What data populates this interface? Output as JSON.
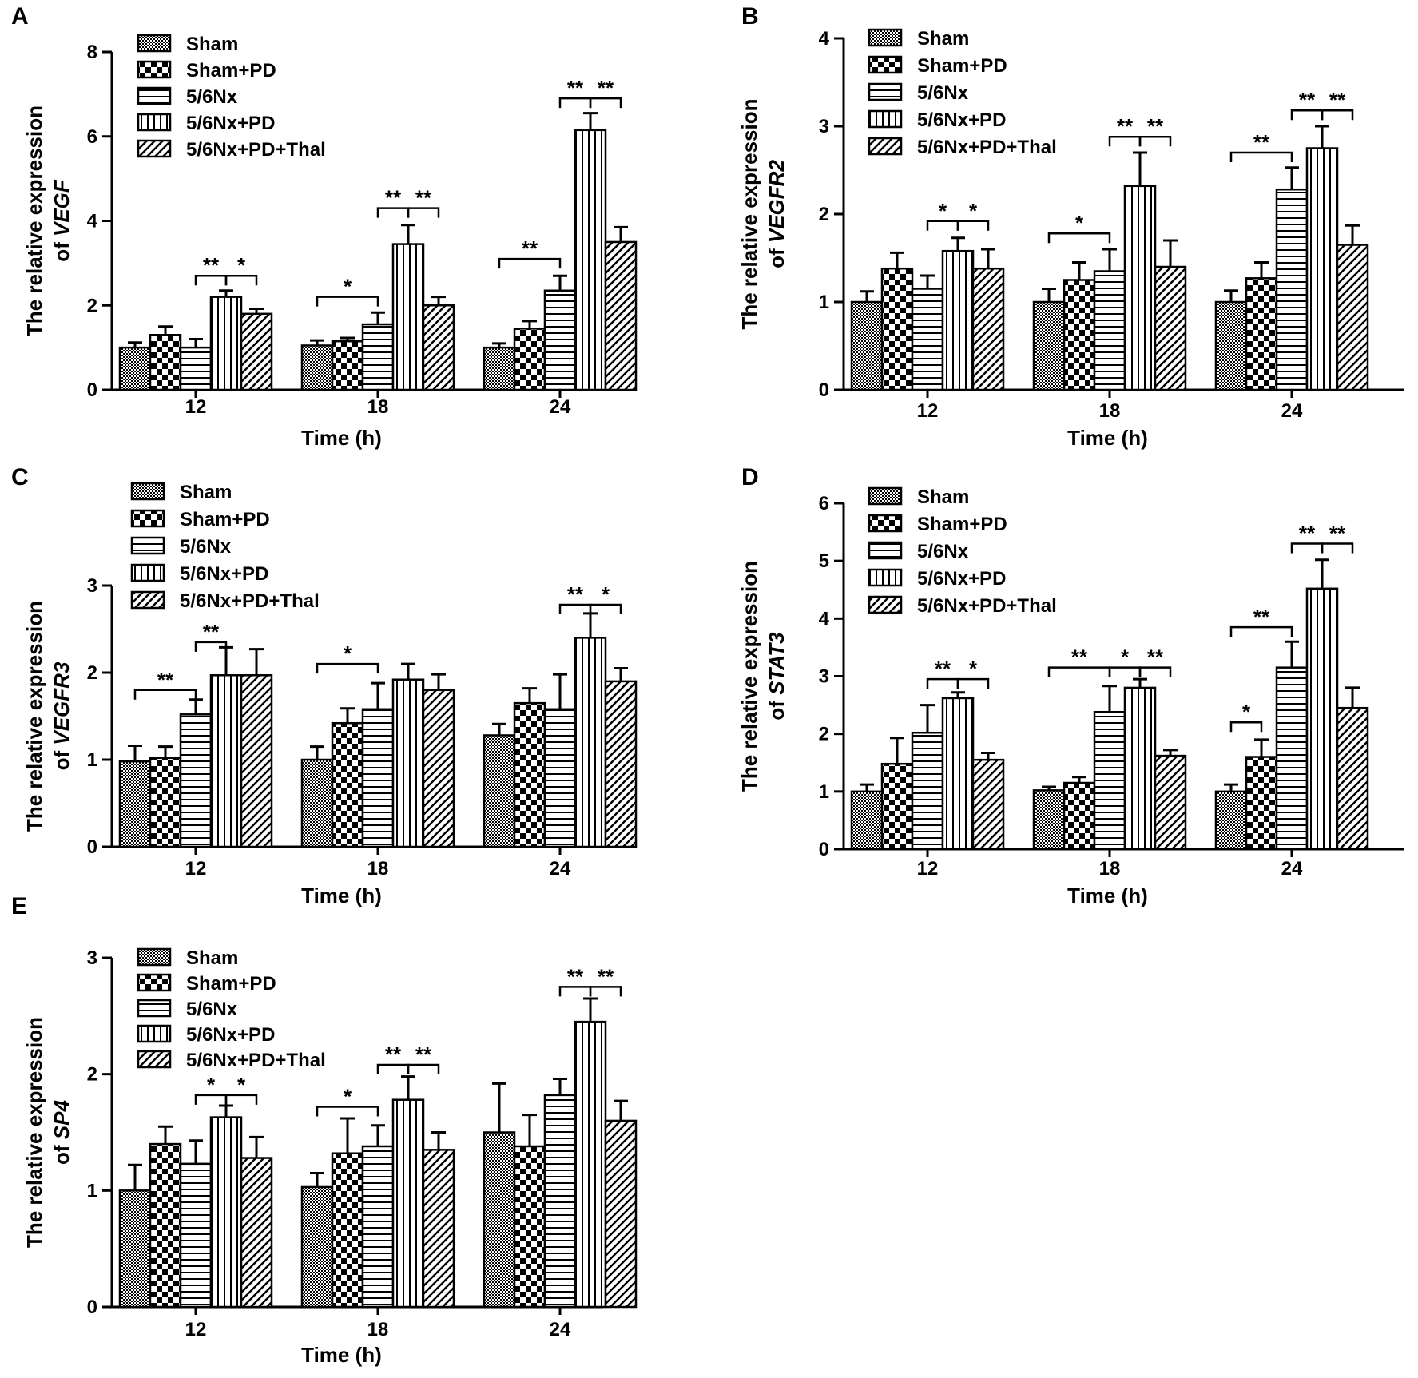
{
  "figure": {
    "series_patterns": [
      "pat-sham",
      "pat-shampd",
      "pat-nx",
      "pat-nxpd",
      "pat-thal"
    ]
  },
  "chart_data": [
    {
      "panel": "A",
      "type": "bar",
      "ylabel_line1": "The relative expression",
      "ylabel_prefix": "of ",
      "gene": "VEGF",
      "xlabel": "Time (h)",
      "categories": [
        "12",
        "18",
        "24"
      ],
      "ylim": [
        0,
        8
      ],
      "yticks": [
        0,
        2,
        4,
        6,
        8
      ],
      "legend": [
        "Sham",
        "Sham+PD",
        "5/6Nx",
        "5/6Nx+PD",
        "5/6Nx+PD+Thal"
      ],
      "series": [
        {
          "name": "Sham",
          "values": [
            1.0,
            1.05,
            1.0
          ],
          "errors": [
            0.12,
            0.12,
            0.1
          ]
        },
        {
          "name": "Sham+PD",
          "values": [
            1.3,
            1.15,
            1.45
          ],
          "errors": [
            0.2,
            0.08,
            0.18
          ]
        },
        {
          "name": "5/6Nx",
          "values": [
            1.0,
            1.55,
            2.35
          ],
          "errors": [
            0.2,
            0.28,
            0.35
          ]
        },
        {
          "name": "5/6Nx+PD",
          "values": [
            2.2,
            3.45,
            6.15
          ],
          "errors": [
            0.15,
            0.45,
            0.4
          ]
        },
        {
          "name": "5/6Nx+PD+Thal",
          "values": [
            1.8,
            2.0,
            3.5
          ],
          "errors": [
            0.12,
            0.2,
            0.35
          ]
        }
      ],
      "significance": [
        {
          "group": 0,
          "from": 2,
          "to": 3,
          "y": 2.7,
          "text": "**"
        },
        {
          "group": 0,
          "from": 3,
          "to": 4,
          "y": 2.7,
          "text": "*"
        },
        {
          "group": 1,
          "from": 0,
          "to": 2,
          "y": 2.2,
          "text": "*"
        },
        {
          "group": 1,
          "from": 3,
          "to": 2,
          "y": 4.3,
          "text": "**"
        },
        {
          "group": 1,
          "from": 3,
          "to": 4,
          "y": 4.3,
          "text": "**"
        },
        {
          "group": 2,
          "from": 0,
          "to": 2,
          "y": 3.1,
          "text": "**"
        },
        {
          "group": 2,
          "from": 3,
          "to": 2,
          "y": 6.9,
          "text": "**"
        },
        {
          "group": 2,
          "from": 3,
          "to": 4,
          "y": 6.9,
          "text": "**"
        }
      ]
    },
    {
      "panel": "B",
      "type": "bar",
      "ylabel_line1": "The relative expression",
      "ylabel_prefix": "of ",
      "gene": "VEGFR2",
      "xlabel": "Time (h)",
      "categories": [
        "12",
        "18",
        "24"
      ],
      "ylim": [
        0,
        4
      ],
      "yticks": [
        0,
        1,
        2,
        3,
        4
      ],
      "legend": [
        "Sham",
        "Sham+PD",
        "5/6Nx",
        "5/6Nx+PD",
        "5/6Nx+PD+Thal"
      ],
      "series": [
        {
          "name": "Sham",
          "values": [
            1.0,
            1.0,
            1.0
          ],
          "errors": [
            0.12,
            0.15,
            0.13
          ]
        },
        {
          "name": "Sham+PD",
          "values": [
            1.38,
            1.25,
            1.27
          ],
          "errors": [
            0.18,
            0.2,
            0.18
          ]
        },
        {
          "name": "5/6Nx",
          "values": [
            1.15,
            1.35,
            2.28
          ],
          "errors": [
            0.15,
            0.25,
            0.25
          ]
        },
        {
          "name": "5/6Nx+PD",
          "values": [
            1.58,
            2.32,
            2.75
          ],
          "errors": [
            0.15,
            0.38,
            0.25
          ]
        },
        {
          "name": "5/6Nx+PD+Thal",
          "values": [
            1.38,
            1.4,
            1.65
          ],
          "errors": [
            0.22,
            0.3,
            0.22
          ]
        }
      ],
      "significance": [
        {
          "group": 0,
          "from": 3,
          "to": 2,
          "y": 1.92,
          "text": "*"
        },
        {
          "group": 0,
          "from": 3,
          "to": 4,
          "y": 1.92,
          "text": "*"
        },
        {
          "group": 1,
          "from": 0,
          "to": 2,
          "y": 1.78,
          "text": "*"
        },
        {
          "group": 1,
          "from": 3,
          "to": 2,
          "y": 2.88,
          "text": "**"
        },
        {
          "group": 1,
          "from": 3,
          "to": 4,
          "y": 2.88,
          "text": "**"
        },
        {
          "group": 2,
          "from": 0,
          "to": 2,
          "y": 2.7,
          "text": "**"
        },
        {
          "group": 2,
          "from": 3,
          "to": 2,
          "y": 3.18,
          "text": "**"
        },
        {
          "group": 2,
          "from": 3,
          "to": 4,
          "y": 3.18,
          "text": "**"
        }
      ]
    },
    {
      "panel": "C",
      "type": "bar",
      "ylabel_line1": "The relative expression",
      "ylabel_prefix": "of ",
      "gene": "VEGFR3",
      "xlabel": "Time (h)",
      "categories": [
        "12",
        "18",
        "24"
      ],
      "ylim": [
        0,
        3
      ],
      "yticks": [
        0,
        1,
        2,
        3
      ],
      "legend": [
        "Sham",
        "Sham+PD",
        "5/6Nx",
        "5/6Nx+PD",
        "5/6Nx+PD+Thal"
      ],
      "series": [
        {
          "name": "Sham",
          "values": [
            0.98,
            1.0,
            1.28
          ],
          "errors": [
            0.18,
            0.15,
            0.13
          ]
        },
        {
          "name": "Sham+PD",
          "values": [
            1.02,
            1.42,
            1.65
          ],
          "errors": [
            0.13,
            0.17,
            0.17
          ]
        },
        {
          "name": "5/6Nx",
          "values": [
            1.52,
            1.58,
            1.58
          ],
          "errors": [
            0.17,
            0.3,
            0.4
          ]
        },
        {
          "name": "5/6Nx+PD",
          "values": [
            1.97,
            1.92,
            2.4
          ],
          "errors": [
            0.32,
            0.18,
            0.28
          ]
        },
        {
          "name": "5/6Nx+PD+Thal",
          "values": [
            1.97,
            1.8,
            1.9
          ],
          "errors": [
            0.3,
            0.18,
            0.15
          ]
        }
      ],
      "significance": [
        {
          "group": 0,
          "from": 0,
          "to": 2,
          "y": 1.8,
          "text": "**"
        },
        {
          "group": 0,
          "from": 2,
          "to": 3,
          "y": 2.35,
          "text": "**"
        },
        {
          "group": 1,
          "from": 0,
          "to": 2,
          "y": 2.1,
          "text": "*"
        },
        {
          "group": 2,
          "from": 3,
          "to": 2,
          "y": 2.78,
          "text": "**"
        },
        {
          "group": 2,
          "from": 3,
          "to": 4,
          "y": 2.78,
          "text": "*"
        }
      ]
    },
    {
      "panel": "D",
      "type": "bar",
      "ylabel_line1": "The relative expression",
      "ylabel_prefix": "of ",
      "gene": "STAT3",
      "xlabel": "Time (h)",
      "categories": [
        "12",
        "18",
        "24"
      ],
      "ylim": [
        0,
        6
      ],
      "yticks": [
        0,
        1,
        2,
        3,
        4,
        5,
        6
      ],
      "legend": [
        "Sham",
        "Sham+PD",
        "5/6Nx",
        "5/6Nx+PD",
        "5/6Nx+PD+Thal"
      ],
      "series": [
        {
          "name": "Sham",
          "values": [
            1.0,
            1.02,
            1.0
          ],
          "errors": [
            0.12,
            0.06,
            0.12
          ]
        },
        {
          "name": "Sham+PD",
          "values": [
            1.48,
            1.15,
            1.6
          ],
          "errors": [
            0.45,
            0.1,
            0.3
          ]
        },
        {
          "name": "5/6Nx",
          "values": [
            2.02,
            2.38,
            3.15
          ],
          "errors": [
            0.48,
            0.45,
            0.45
          ]
        },
        {
          "name": "5/6Nx+PD",
          "values": [
            2.62,
            2.8,
            4.52
          ],
          "errors": [
            0.1,
            0.15,
            0.5
          ]
        },
        {
          "name": "5/6Nx+PD+Thal",
          "values": [
            1.55,
            1.62,
            2.45
          ],
          "errors": [
            0.12,
            0.1,
            0.35
          ]
        }
      ],
      "significance": [
        {
          "group": 0,
          "from": 3,
          "to": 2,
          "y": 2.95,
          "text": "**"
        },
        {
          "group": 0,
          "from": 3,
          "to": 4,
          "y": 2.95,
          "text": "*"
        },
        {
          "group": 1,
          "from": 0,
          "to": 2,
          "y": 3.15,
          "text": "**"
        },
        {
          "group": 1,
          "from": 3,
          "to": 2,
          "y": 3.15,
          "text": "*"
        },
        {
          "group": 1,
          "from": 3,
          "to": 4,
          "y": 3.15,
          "text": "**"
        },
        {
          "group": 2,
          "from": 0,
          "to": 1,
          "y": 2.2,
          "text": "*"
        },
        {
          "group": 2,
          "from": 0,
          "to": 2,
          "y": 3.85,
          "text": "**"
        },
        {
          "group": 2,
          "from": 3,
          "to": 2,
          "y": 5.3,
          "text": "**"
        },
        {
          "group": 2,
          "from": 3,
          "to": 4,
          "y": 5.3,
          "text": "**"
        }
      ]
    },
    {
      "panel": "E",
      "type": "bar",
      "ylabel_line1": "The relative expression",
      "ylabel_prefix": "of ",
      "gene": "SP4",
      "xlabel": "Time (h)",
      "categories": [
        "12",
        "18",
        "24"
      ],
      "ylim": [
        0,
        3
      ],
      "yticks": [
        0,
        1,
        2,
        3
      ],
      "legend": [
        "Sham",
        "Sham+PD",
        "5/6Nx",
        "5/6Nx+PD",
        "5/6Nx+PD+Thal"
      ],
      "series": [
        {
          "name": "Sham",
          "values": [
            1.0,
            1.03,
            1.5
          ],
          "errors": [
            0.22,
            0.12,
            0.42
          ]
        },
        {
          "name": "Sham+PD",
          "values": [
            1.4,
            1.32,
            1.38
          ],
          "errors": [
            0.15,
            0.3,
            0.27
          ]
        },
        {
          "name": "5/6Nx",
          "values": [
            1.23,
            1.38,
            1.82
          ],
          "errors": [
            0.2,
            0.18,
            0.14
          ]
        },
        {
          "name": "5/6Nx+PD",
          "values": [
            1.63,
            1.78,
            2.45
          ],
          "errors": [
            0.1,
            0.2,
            0.2
          ]
        },
        {
          "name": "5/6Nx+PD+Thal",
          "values": [
            1.28,
            1.35,
            1.6
          ],
          "errors": [
            0.18,
            0.15,
            0.17
          ]
        }
      ],
      "significance": [
        {
          "group": 0,
          "from": 3,
          "to": 2,
          "y": 1.82,
          "text": "*"
        },
        {
          "group": 0,
          "from": 3,
          "to": 4,
          "y": 1.82,
          "text": "*"
        },
        {
          "group": 1,
          "from": 0,
          "to": 2,
          "y": 1.72,
          "text": "*"
        },
        {
          "group": 1,
          "from": 3,
          "to": 2,
          "y": 2.08,
          "text": "**"
        },
        {
          "group": 1,
          "from": 3,
          "to": 4,
          "y": 2.08,
          "text": "**"
        },
        {
          "group": 2,
          "from": 3,
          "to": 2,
          "y": 2.75,
          "text": "**"
        },
        {
          "group": 2,
          "from": 3,
          "to": 4,
          "y": 2.75,
          "text": "**"
        }
      ]
    }
  ]
}
